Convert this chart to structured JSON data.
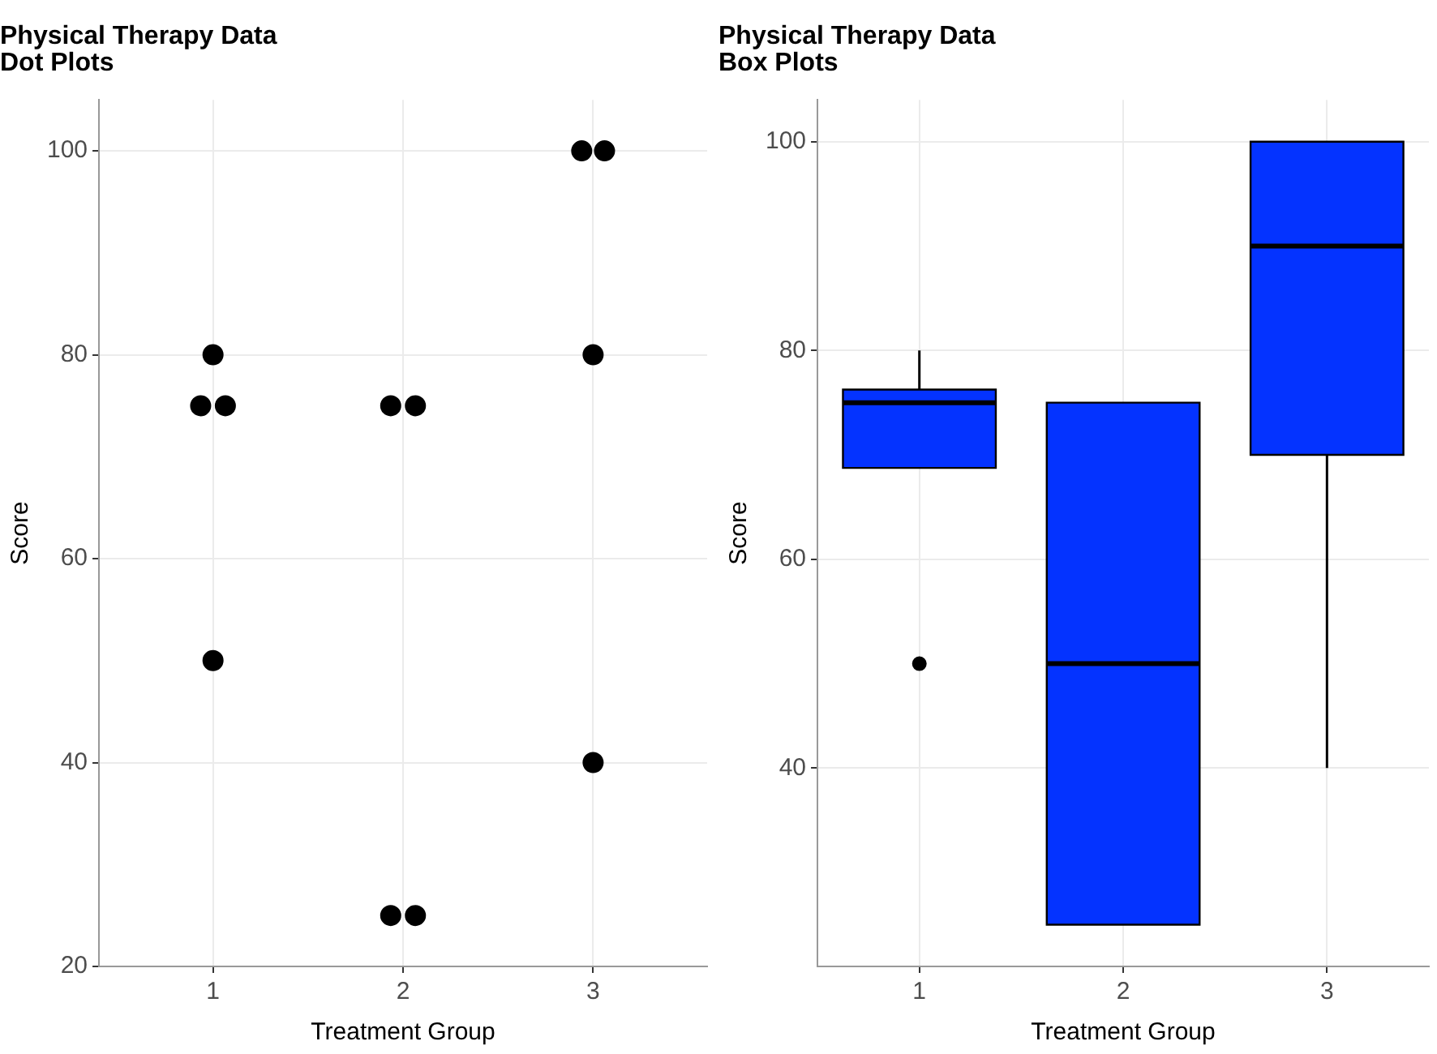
{
  "chart_data": [
    {
      "type": "scatter",
      "title": "Physical Therapy Data\nDot Plots",
      "xlabel": "Treatment Group",
      "ylabel": "Score",
      "color": "#000000",
      "marker": "circle",
      "grid": true,
      "x": [
        0.935,
        1.065,
        1,
        1,
        1.935,
        2.065,
        1.935,
        2.065,
        2.94,
        3.06,
        3,
        3
      ],
      "values": [
        75,
        75,
        80,
        50,
        75,
        75,
        25,
        25,
        100,
        100,
        80,
        40
      ],
      "xlim": [
        0.4,
        3.6
      ],
      "xticks": [
        1,
        2,
        3
      ],
      "ylim": [
        20,
        105
      ],
      "yticks": [
        20,
        40,
        60,
        80,
        100
      ]
    },
    {
      "type": "box",
      "title": "Physical Therapy Data\nBox Plots",
      "xlabel": "Treatment Group",
      "ylabel": "Score",
      "color": "#0433ff",
      "grid": true,
      "categories": [
        "1",
        "2",
        "3"
      ],
      "boxes": [
        {
          "low": 68.75,
          "q1": 68.75,
          "median": 75,
          "q3": 76.25,
          "high": 80,
          "outliers": [
            50
          ]
        },
        {
          "low": 25,
          "q1": 25,
          "median": 50,
          "q3": 75,
          "high": 75
        },
        {
          "low": 40,
          "q1": 70,
          "median": 90,
          "q3": 100,
          "high": 100
        }
      ],
      "ylim": [
        21,
        104
      ],
      "yticks": [
        40,
        60,
        80,
        100
      ]
    }
  ]
}
